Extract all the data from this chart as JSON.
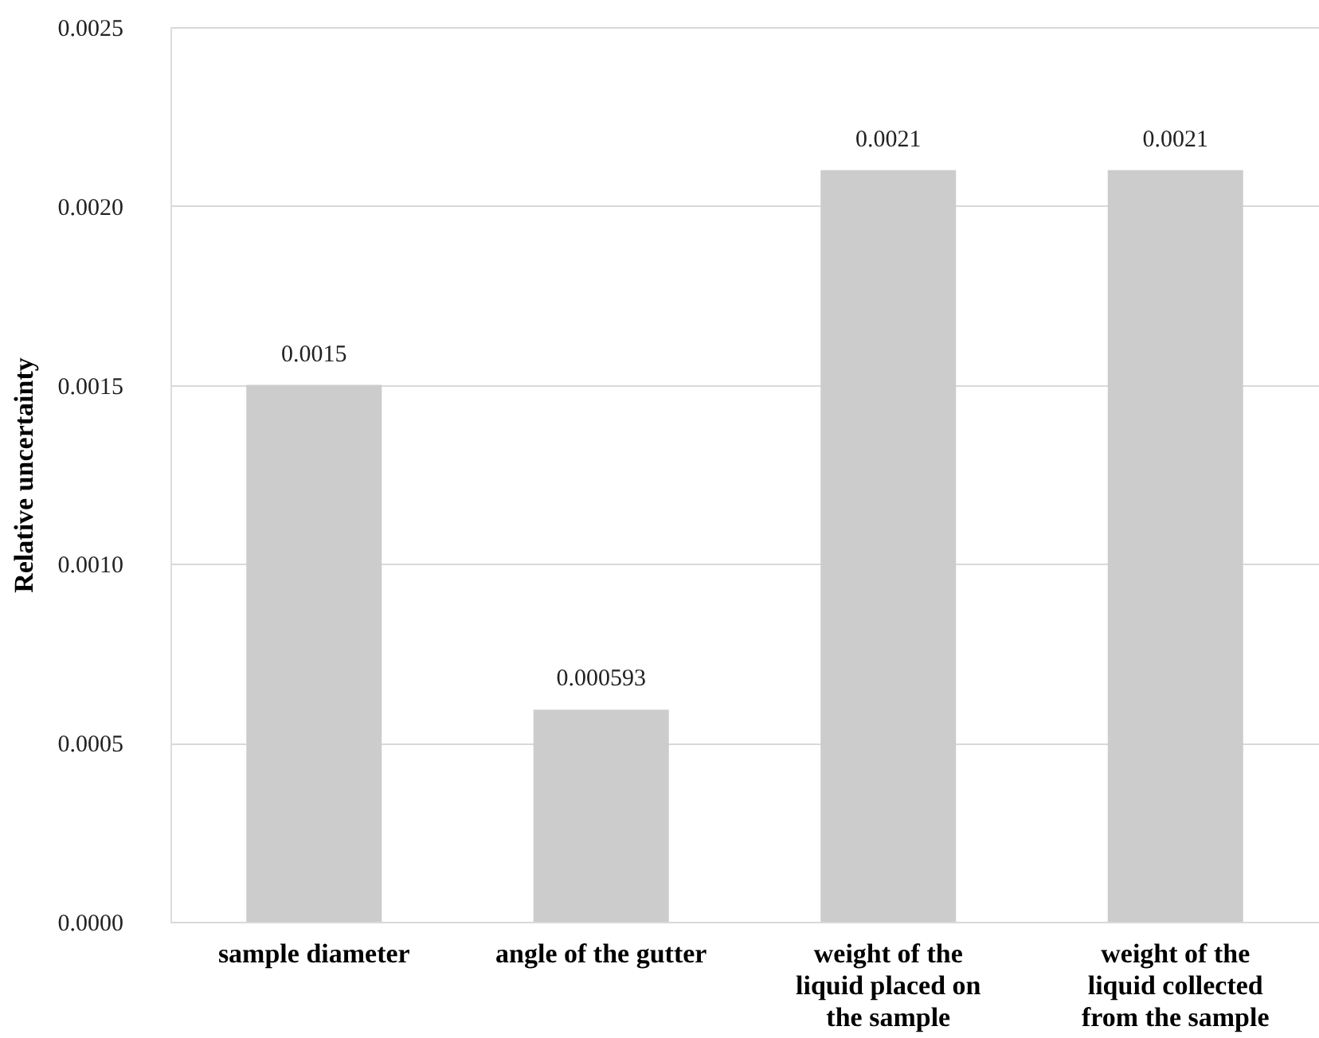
{
  "chart_data": {
    "type": "bar",
    "ylabel": "Relative uncertainty",
    "categories": [
      "sample diameter",
      "angle of the gutter",
      "weight of the\nliquid placed on\nthe sample",
      "weight of the\nliquid collected\nfrom the sample"
    ],
    "values": [
      0.0015,
      0.000593,
      0.0021,
      0.0021
    ],
    "color": "#cccccc",
    "ylim": [
      0,
      0.0025
    ],
    "yticks": [
      {
        "value": 0,
        "label": "0.0000"
      },
      {
        "value": 0.0005,
        "label": "0.0005"
      },
      {
        "value": 0.001,
        "label": "0.0010"
      },
      {
        "value": 0.0015,
        "label": "0.0015"
      },
      {
        "value": 0.002,
        "label": "0.0020"
      },
      {
        "value": 0.0025,
        "label": "0.0025"
      }
    ],
    "grid": "y",
    "data_labels": true
  }
}
